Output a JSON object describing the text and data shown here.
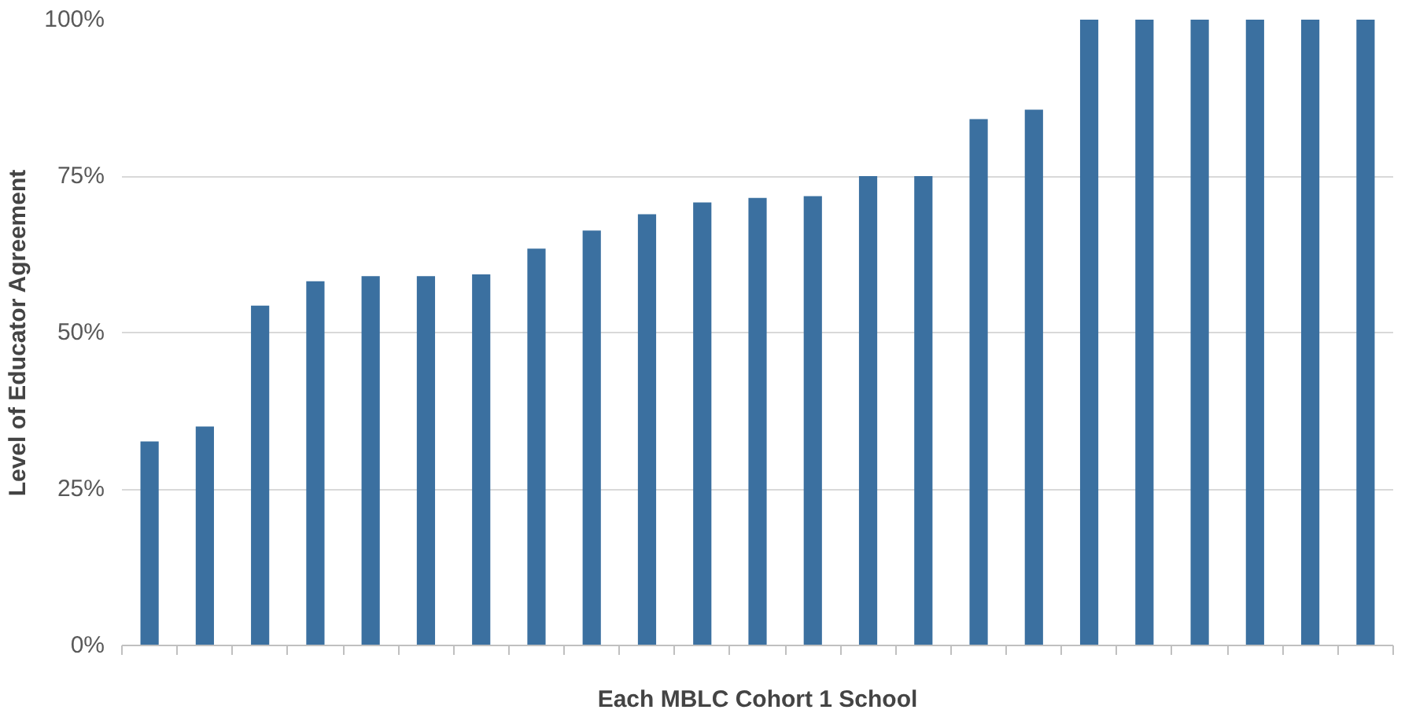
{
  "chart_data": {
    "type": "bar",
    "xlabel": "Each MBLC Cohort 1 School",
    "ylabel": "Level of Educator Agreement",
    "categories": [
      null,
      null,
      null,
      null,
      null,
      null,
      null,
      null,
      null,
      null,
      null,
      null,
      null,
      null,
      null,
      null,
      null,
      null,
      null,
      null,
      null,
      null,
      null
    ],
    "values": [
      32.6,
      35,
      54.3,
      58.2,
      59,
      59,
      59.3,
      63.4,
      66.3,
      68.9,
      70.8,
      71.5,
      71.8,
      75,
      75,
      84.1,
      85.6,
      100,
      100,
      100,
      100,
      100,
      100
    ],
    "color": "#3b70a0",
    "ylim": [
      0,
      100
    ],
    "yticks": [
      {
        "value": 0,
        "label": "0%"
      },
      {
        "value": 25,
        "label": "25%"
      },
      {
        "value": 50,
        "label": "50%"
      },
      {
        "value": 75,
        "label": "75%"
      },
      {
        "value": 100,
        "label": "100%"
      }
    ],
    "grid": "y"
  }
}
